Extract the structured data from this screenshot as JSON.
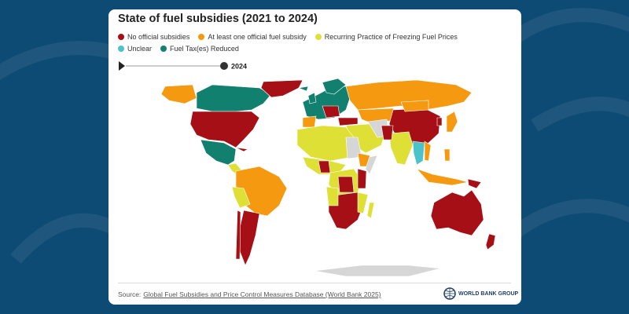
{
  "header": {
    "title": "State of fuel subsidies (2021 to 2024)"
  },
  "legend": [
    {
      "label": "No official subsidies",
      "color": "#a50f15"
    },
    {
      "label": "At least one official fuel subsidy",
      "color": "#f59a10"
    },
    {
      "label": "Recurring Practice of Freezing Fuel Prices",
      "color": "#dfe036"
    },
    {
      "label": "Unclear",
      "color": "#4cc3c9"
    },
    {
      "label": "Fuel Tax(es) Reduced",
      "color": "#12806e"
    }
  ],
  "slider": {
    "label": "2024"
  },
  "footer": {
    "source_prefix": "Source:",
    "source_link": "Global Fuel Subsidies and Price Control Measures Database (World Bank 2025)"
  },
  "logo": {
    "text": "WORLD BANK GROUP"
  }
}
